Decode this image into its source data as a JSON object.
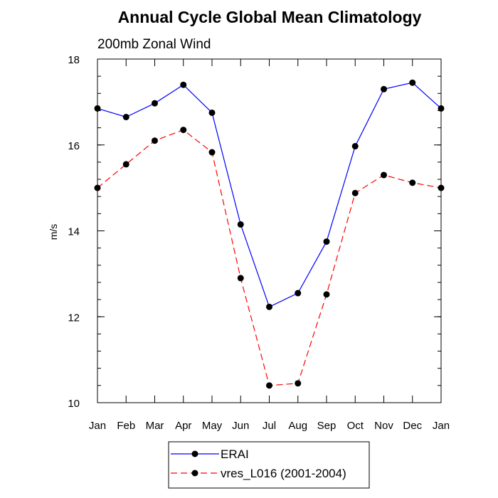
{
  "chart_data": {
    "type": "line",
    "title": "Annual Cycle Global Mean Climatology",
    "subtitle": "200mb Zonal Wind",
    "ylabel": "m/s",
    "xlabel": "",
    "categories": [
      "Jan",
      "Feb",
      "Mar",
      "Apr",
      "May",
      "Jun",
      "Jul",
      "Aug",
      "Sep",
      "Oct",
      "Nov",
      "Dec",
      "Jan"
    ],
    "ylim": [
      10,
      18
    ],
    "yticks": [
      10,
      12,
      14,
      16,
      18
    ],
    "series": [
      {
        "name": "ERAI",
        "color": "#0000ff",
        "dash": "solid",
        "marker": "circle",
        "values": [
          16.85,
          16.65,
          16.97,
          17.4,
          16.75,
          14.15,
          12.23,
          12.55,
          13.75,
          15.97,
          17.3,
          17.45,
          16.85
        ]
      },
      {
        "name": "vres_L016 (2001-2004)",
        "color": "#ff0000",
        "dash": "dashed",
        "marker": "circle",
        "values": [
          15.0,
          15.55,
          16.1,
          16.35,
          15.83,
          12.9,
          10.4,
          10.45,
          12.52,
          14.88,
          15.3,
          15.12,
          15.0
        ]
      }
    ],
    "legend_position": "bottom-left"
  }
}
